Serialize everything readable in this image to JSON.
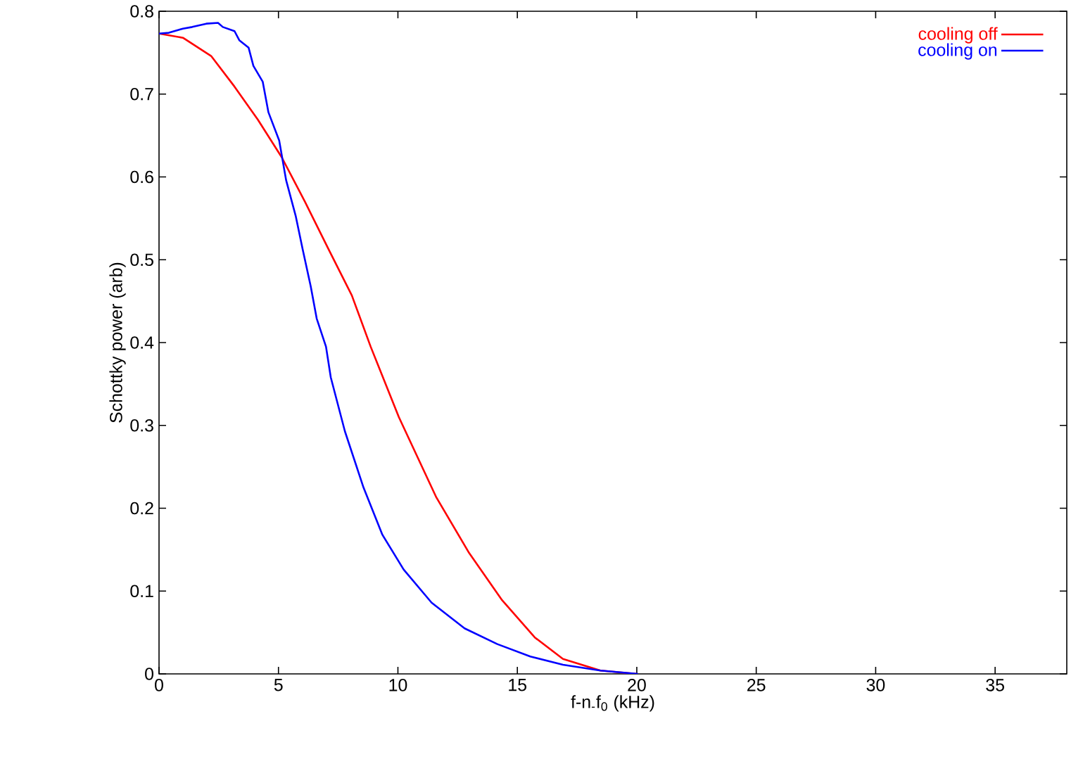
{
  "chart_data": {
    "type": "line",
    "xlabel": "f-n$_{-}$f$_{0}$ (kHz)",
    "ylabel": "Schottky power (arb)",
    "xlim": [
      0,
      38
    ],
    "ylim": [
      0,
      0.8
    ],
    "xticks": [
      0,
      5,
      10,
      15,
      20,
      25,
      30,
      35
    ],
    "yticks": [
      0,
      0.1,
      0.2,
      0.3,
      0.4,
      0.5,
      0.6,
      0.7,
      0.8
    ],
    "grid": false,
    "legend": "top right",
    "marker": "none",
    "line_style": "solid",
    "series": [
      {
        "name": "cooling off",
        "color": "#ff0000",
        "x": [
          0,
          1,
          2.18,
          3.16,
          4.14,
          5.13,
          6.11,
          7.09,
          8.07,
          8.86,
          10.04,
          11.61,
          12.98,
          14.36,
          15.73,
          16.91,
          18.48,
          19.66,
          20
        ],
        "values": [
          0.773,
          0.768,
          0.746,
          0.709,
          0.669,
          0.624,
          0.57,
          0.513,
          0.457,
          0.395,
          0.31,
          0.213,
          0.146,
          0.089,
          0.044,
          0.018,
          0.004,
          null,
          0
        ]
      },
      {
        "name": "cooling on",
        "color": "#0000ff",
        "x": [
          0,
          0.41,
          1.0,
          1.39,
          1.98,
          2.47,
          2.67,
          3.16,
          3.36,
          3.75,
          3.95,
          4.34,
          4.58,
          5.03,
          5.32,
          5.72,
          6.01,
          6.35,
          6.6,
          6.99,
          7.19,
          7.78,
          8.56,
          9.35,
          10.24,
          11.41,
          12.79,
          14.16,
          15.54,
          16.91,
          18.48,
          20.05
        ],
        "values": [
          0.773,
          0.774,
          0.779,
          0.781,
          0.785,
          0.786,
          0.781,
          0.776,
          0.765,
          0.756,
          0.734,
          0.715,
          0.678,
          0.644,
          0.596,
          0.553,
          0.513,
          0.468,
          0.429,
          0.395,
          0.358,
          0.293,
          0.225,
          0.168,
          0.126,
          0.086,
          0.055,
          0.036,
          0.021,
          0.011,
          0.004,
          0
        ]
      }
    ]
  }
}
